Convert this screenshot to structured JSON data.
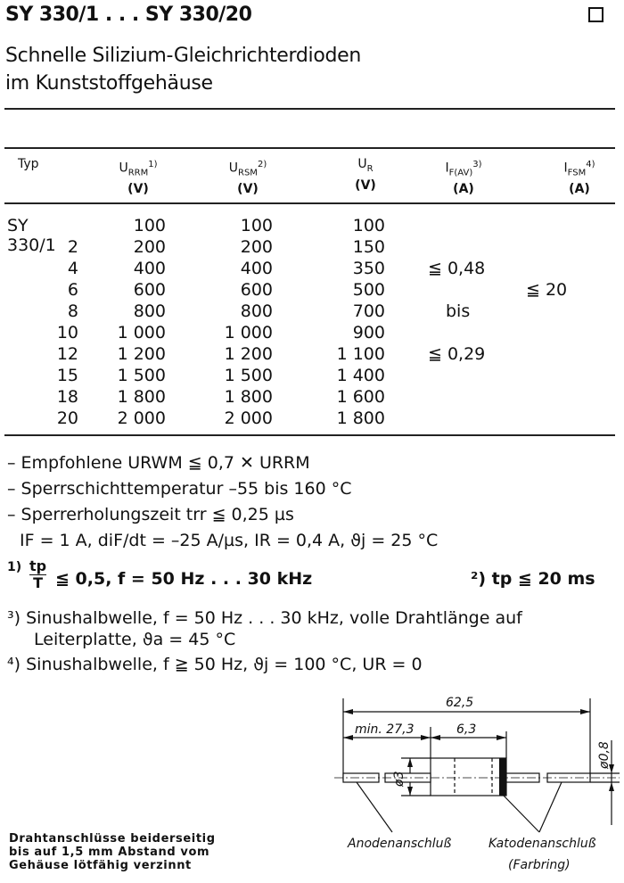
{
  "header": {
    "title": "SY 330/1 . . . SY 330/20",
    "subtitle_line1": "Schnelle Silizium-Gleichrichterdioden",
    "subtitle_line2": "im Kunststoffgehäuse"
  },
  "table": {
    "columns": [
      {
        "label": "Typ",
        "unit": ""
      },
      {
        "label": "URRM",
        "sub": "RRM",
        "sup": "1)",
        "unit": "(V)"
      },
      {
        "label": "URSM",
        "sub": "RSM",
        "sup": "2)",
        "unit": "(V)"
      },
      {
        "label": "UR",
        "sub": "R",
        "sup": "",
        "unit": "(V)"
      },
      {
        "label": "IF(AV)",
        "sub": "F(AV)",
        "sup": "3)",
        "unit": "(A)"
      },
      {
        "label": "IFSM",
        "sub": "FSM",
        "sup": "4)",
        "unit": "(A)"
      }
    ],
    "rows": [
      {
        "typ": "SY 330/1",
        "urrm": "100",
        "ursm": "100",
        "ur": "100"
      },
      {
        "typ": "2",
        "urrm": "200",
        "ursm": "200",
        "ur": "150"
      },
      {
        "typ": "4",
        "urrm": "400",
        "ursm": "400",
        "ur": "350"
      },
      {
        "typ": "6",
        "urrm": "600",
        "ursm": "600",
        "ur": "500"
      },
      {
        "typ": "8",
        "urrm": "800",
        "ursm": "800",
        "ur": "700"
      },
      {
        "typ": "10",
        "urrm": "1 000",
        "ursm": "1 000",
        "ur": "900"
      },
      {
        "typ": "12",
        "urrm": "1 200",
        "ursm": "1 200",
        "ur": "1 100"
      },
      {
        "typ": "15",
        "urrm": "1 500",
        "ursm": "1 500",
        "ur": "1 400"
      },
      {
        "typ": "18",
        "urrm": "1 800",
        "ursm": "1 800",
        "ur": "1 600"
      },
      {
        "typ": "20",
        "urrm": "2 000",
        "ursm": "2 000",
        "ur": "1 800"
      }
    ],
    "if_av": {
      "max": "≦ 0,48",
      "bis": "bis",
      "min": "≦ 0,29"
    },
    "ifsm": "≦ 20"
  },
  "notes": [
    "– Empfohlene URWM ≦ 0,7 ✕ URRM",
    "– Sperrschichttemperatur –55 bis 160 °C",
    "– Sperrerholungszeit trr ≦ 0,25 µs",
    "IF = 1 A, diF/dt = –25 A/µs, IR = 0,4 A, ϑj = 25 °C"
  ],
  "footnotes": {
    "f1_mark": "1)",
    "f1_num": "tp",
    "f1_den": "T",
    "f1_text": "≦ 0,5, f = 50 Hz . . . 30 kHz",
    "f2": "²) tp ≦ 20 ms",
    "f3_line1": "³) Sinushalbwelle,  f = 50 Hz . . . 30 kHz,  volle  Drahtlänge  auf",
    "f3_line2": "Leiterplatte, ϑa = 45 °C",
    "f4": "⁴) Sinushalbwelle, f ≧ 50 Hz,  ϑj = 100 °C, UR = 0"
  },
  "drawing": {
    "total_length": "62,5",
    "lead_min": "min. 27,3",
    "body_length": "6,3",
    "body_dia": "ø3",
    "lead_dia": "ø0,8",
    "anode_label": "Anodenanschluß",
    "cathode_label": "Katodenanschluß",
    "cathode_note": "(Farbring)"
  },
  "footer": {
    "line1": "Drahtanschlüsse beiderseitig",
    "line2": "bis auf 1,5 mm Abstand vom",
    "line3": "Gehäuse lötfähig verzinnt"
  }
}
